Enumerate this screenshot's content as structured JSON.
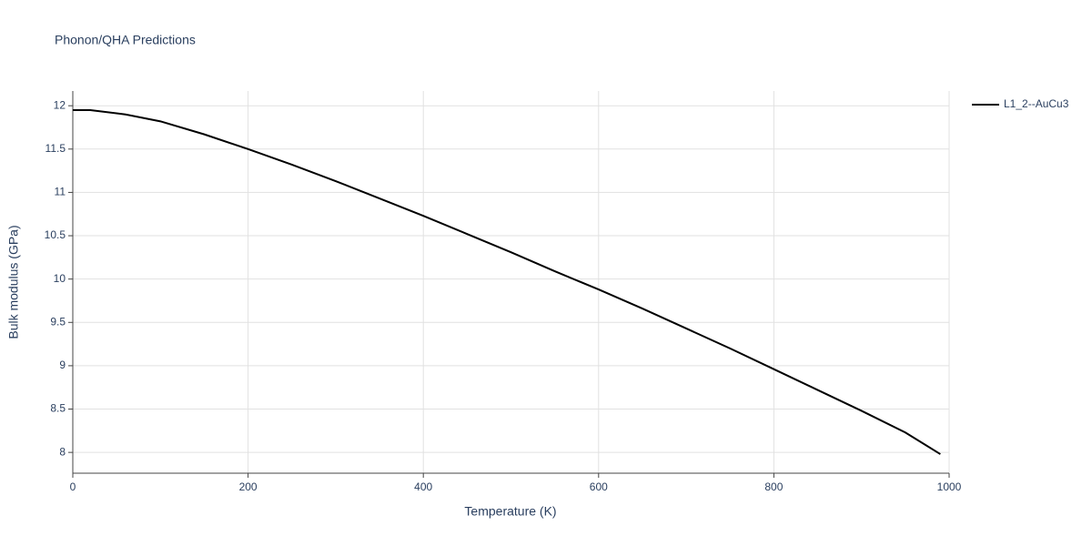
{
  "chart_data": {
    "type": "line",
    "title": "Phonon/QHA Predictions",
    "x_label": "Temperature (K)",
    "y_label": "Bulk modulus (GPa)",
    "x": [
      0,
      20,
      60,
      100,
      150,
      200,
      250,
      300,
      350,
      400,
      450,
      500,
      550,
      600,
      650,
      700,
      750,
      800,
      850,
      900,
      950,
      990
    ],
    "series": [
      {
        "name": "L1_2--AuCu3",
        "color": "#000000",
        "values": [
          11.95,
          11.95,
          11.9,
          11.82,
          11.67,
          11.5,
          11.32,
          11.13,
          10.93,
          10.73,
          10.52,
          10.31,
          10.09,
          9.88,
          9.66,
          9.43,
          9.2,
          8.96,
          8.72,
          8.48,
          8.23,
          7.98
        ]
      }
    ],
    "xlim": [
      0,
      1000
    ],
    "xticks": [
      0,
      200,
      400,
      600,
      800,
      1000
    ],
    "ylim": [
      7.76,
      12.17
    ],
    "yticks": [
      8,
      8.5,
      9,
      9.5,
      10,
      10.5,
      11,
      11.5,
      12
    ],
    "grid": true,
    "legend": "right"
  }
}
